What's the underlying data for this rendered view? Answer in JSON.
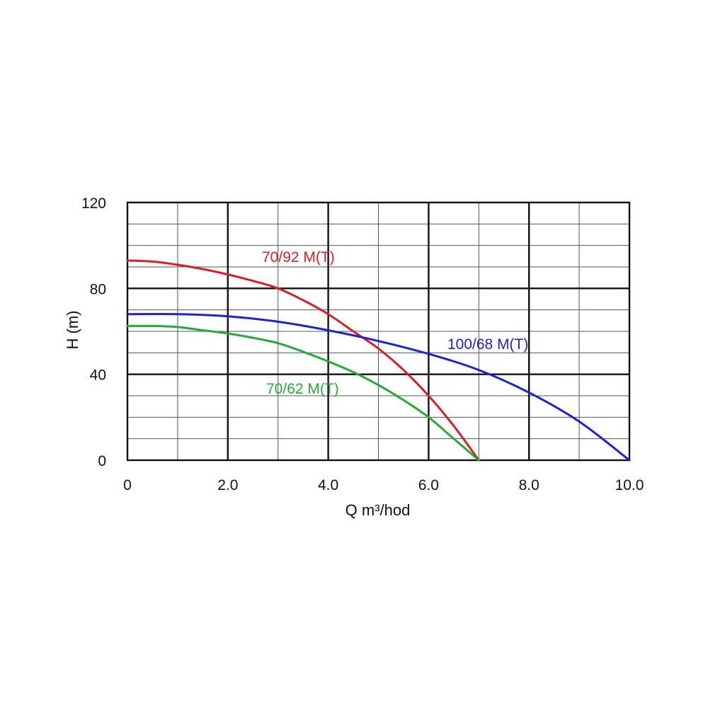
{
  "chart_data": {
    "type": "line",
    "title": "",
    "xlabel": "Q m³/hod",
    "ylabel": "H (m)",
    "xlim": [
      0,
      10
    ],
    "ylim": [
      0,
      120
    ],
    "x_major_ticks": [
      0,
      2,
      4,
      6,
      8,
      10
    ],
    "x_tick_labels": [
      "0",
      "2.0",
      "4.0",
      "6.0",
      "8.0",
      "10.0"
    ],
    "y_major_ticks": [
      0,
      40,
      80,
      120
    ],
    "y_tick_labels": [
      "0",
      "40",
      "80",
      "120"
    ],
    "x_minor_step": 1,
    "y_minor_step": 10,
    "grid": true,
    "legend": "inline",
    "series": [
      {
        "name": "70/92 M(T)",
        "color": "#d42027",
        "x": [
          0,
          0.5,
          1,
          1.5,
          2,
          2.5,
          3,
          3.5,
          4,
          4.5,
          5,
          5.5,
          6,
          6.5,
          7
        ],
        "y": [
          93,
          92.5,
          91,
          89,
          86.5,
          83.5,
          80,
          74.5,
          68,
          60,
          52,
          42,
          30,
          16,
          0
        ]
      },
      {
        "name": "100/68 M(T)",
        "color": "#1d22cf",
        "x": [
          0,
          1,
          2,
          3,
          4,
          5,
          6,
          7,
          8,
          9,
          10
        ],
        "y": [
          68,
          68,
          67,
          64.5,
          60.5,
          55.5,
          49.5,
          42,
          31.5,
          18,
          0
        ]
      },
      {
        "name": "70/62 M(T)",
        "color": "#27a83a",
        "x": [
          0,
          0.5,
          1,
          1.5,
          2,
          2.5,
          3,
          3.5,
          4,
          4.5,
          5,
          5.5,
          6,
          6.5,
          7
        ],
        "y": [
          62.5,
          62.5,
          62,
          60.5,
          59,
          57,
          54.5,
          50.5,
          46,
          41,
          35,
          28,
          20,
          10,
          0
        ]
      }
    ]
  }
}
